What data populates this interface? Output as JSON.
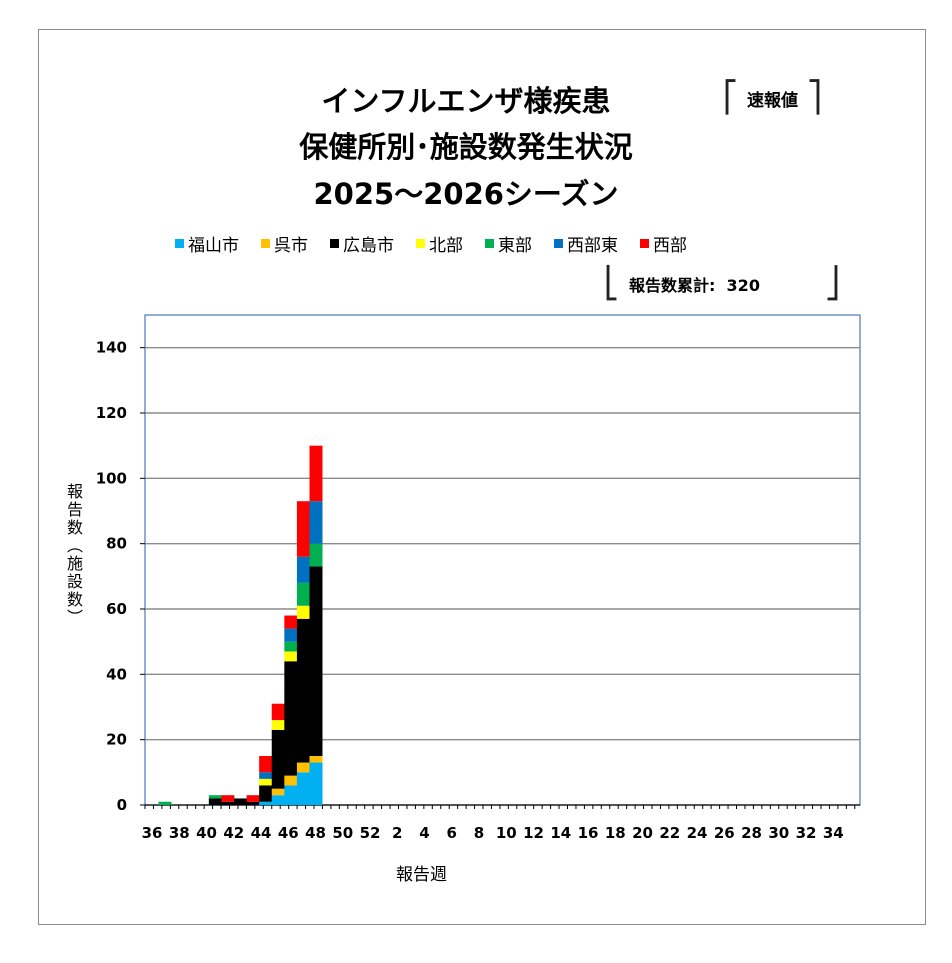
{
  "title": {
    "line1": "インフルエンザ様疾患",
    "line2": "保健所別･施設数発生状況",
    "line3": "2025～2026シーズン"
  },
  "badge": "速報値",
  "cumulative_label": "報告数累計:",
  "cumulative_value": "320",
  "chart_data": {
    "type": "bar",
    "stacked": true,
    "ylabel": "報告数(施設数)",
    "xlabel": "報告週",
    "ylim": [
      0,
      150
    ],
    "yticks": [
      0,
      20,
      40,
      60,
      80,
      100,
      120,
      140
    ],
    "grid": true,
    "legend": "top",
    "categories": [
      "36",
      "37",
      "38",
      "39",
      "40",
      "41",
      "42",
      "43",
      "44",
      "45",
      "46",
      "47",
      "48",
      "49",
      "50",
      "51",
      "52",
      "1",
      "2",
      "3",
      "4",
      "5",
      "6",
      "7",
      "8",
      "9",
      "10",
      "11",
      "12",
      "13",
      "14",
      "15",
      "16",
      "17",
      "18",
      "19",
      "20",
      "21",
      "22",
      "23",
      "24",
      "25",
      "26",
      "27",
      "28",
      "29",
      "30",
      "31",
      "32",
      "33",
      "34",
      "35"
    ],
    "xtick_labels": [
      "36",
      "38",
      "40",
      "42",
      "44",
      "46",
      "48",
      "50",
      "52",
      "2",
      "4",
      "6",
      "8",
      "10",
      "12",
      "14",
      "16",
      "18",
      "20",
      "22",
      "24",
      "26",
      "28",
      "30",
      "32",
      "34"
    ],
    "series": [
      {
        "name": "福山市",
        "color": "#00b0f0",
        "values": [
          0,
          0,
          0,
          0,
          0,
          0,
          0,
          0,
          1,
          3,
          6,
          10,
          13,
          0,
          0,
          0,
          0,
          0,
          0,
          0,
          0,
          0,
          0,
          0,
          0,
          0,
          0,
          0,
          0,
          0,
          0,
          0,
          0,
          0,
          0,
          0,
          0,
          0,
          0,
          0,
          0,
          0,
          0,
          0,
          0,
          0,
          0,
          0,
          0,
          0,
          0,
          0
        ]
      },
      {
        "name": "呉市",
        "color": "#ffc000",
        "values": [
          0,
          0,
          0,
          0,
          0,
          0,
          0,
          0,
          0,
          2,
          3,
          3,
          2,
          0,
          0,
          0,
          0,
          0,
          0,
          0,
          0,
          0,
          0,
          0,
          0,
          0,
          0,
          0,
          0,
          0,
          0,
          0,
          0,
          0,
          0,
          0,
          0,
          0,
          0,
          0,
          0,
          0,
          0,
          0,
          0,
          0,
          0,
          0,
          0,
          0,
          0,
          0
        ]
      },
      {
        "name": "広島市",
        "color": "#000000",
        "values": [
          0,
          0,
          0,
          0,
          2,
          1,
          2,
          1,
          5,
          18,
          35,
          44,
          58,
          0,
          0,
          0,
          0,
          0,
          0,
          0,
          0,
          0,
          0,
          0,
          0,
          0,
          0,
          0,
          0,
          0,
          0,
          0,
          0,
          0,
          0,
          0,
          0,
          0,
          0,
          0,
          0,
          0,
          0,
          0,
          0,
          0,
          0,
          0,
          0,
          0,
          0,
          0
        ]
      },
      {
        "name": "北部",
        "color": "#ffff00",
        "values": [
          0,
          0,
          0,
          0,
          0,
          0,
          0,
          0,
          2,
          3,
          3,
          4,
          0,
          0,
          0,
          0,
          0,
          0,
          0,
          0,
          0,
          0,
          0,
          0,
          0,
          0,
          0,
          0,
          0,
          0,
          0,
          0,
          0,
          0,
          0,
          0,
          0,
          0,
          0,
          0,
          0,
          0,
          0,
          0,
          0,
          0,
          0,
          0,
          0,
          0,
          0,
          0
        ]
      },
      {
        "name": "東部",
        "color": "#00b050",
        "values": [
          1,
          0,
          0,
          0,
          1,
          0,
          0,
          0,
          0,
          0,
          3,
          7,
          7,
          0,
          0,
          0,
          0,
          0,
          0,
          0,
          0,
          0,
          0,
          0,
          0,
          0,
          0,
          0,
          0,
          0,
          0,
          0,
          0,
          0,
          0,
          0,
          0,
          0,
          0,
          0,
          0,
          0,
          0,
          0,
          0,
          0,
          0,
          0,
          0,
          0,
          0,
          0
        ]
      },
      {
        "name": "西部東",
        "color": "#0070c0",
        "values": [
          0,
          0,
          0,
          0,
          0,
          0,
          0,
          0,
          2,
          0,
          4,
          8,
          13,
          0,
          0,
          0,
          0,
          0,
          0,
          0,
          0,
          0,
          0,
          0,
          0,
          0,
          0,
          0,
          0,
          0,
          0,
          0,
          0,
          0,
          0,
          0,
          0,
          0,
          0,
          0,
          0,
          0,
          0,
          0,
          0,
          0,
          0,
          0,
          0,
          0,
          0,
          0
        ]
      },
      {
        "name": "西部",
        "color": "#ff0000",
        "values": [
          0,
          0,
          0,
          0,
          0,
          2,
          0,
          2,
          5,
          5,
          4,
          17,
          17,
          0,
          0,
          0,
          0,
          0,
          0,
          0,
          0,
          0,
          0,
          0,
          0,
          0,
          0,
          0,
          0,
          0,
          0,
          0,
          0,
          0,
          0,
          0,
          0,
          0,
          0,
          0,
          0,
          0,
          0,
          0,
          0,
          0,
          0,
          0,
          0,
          0,
          0,
          0
        ]
      }
    ]
  }
}
